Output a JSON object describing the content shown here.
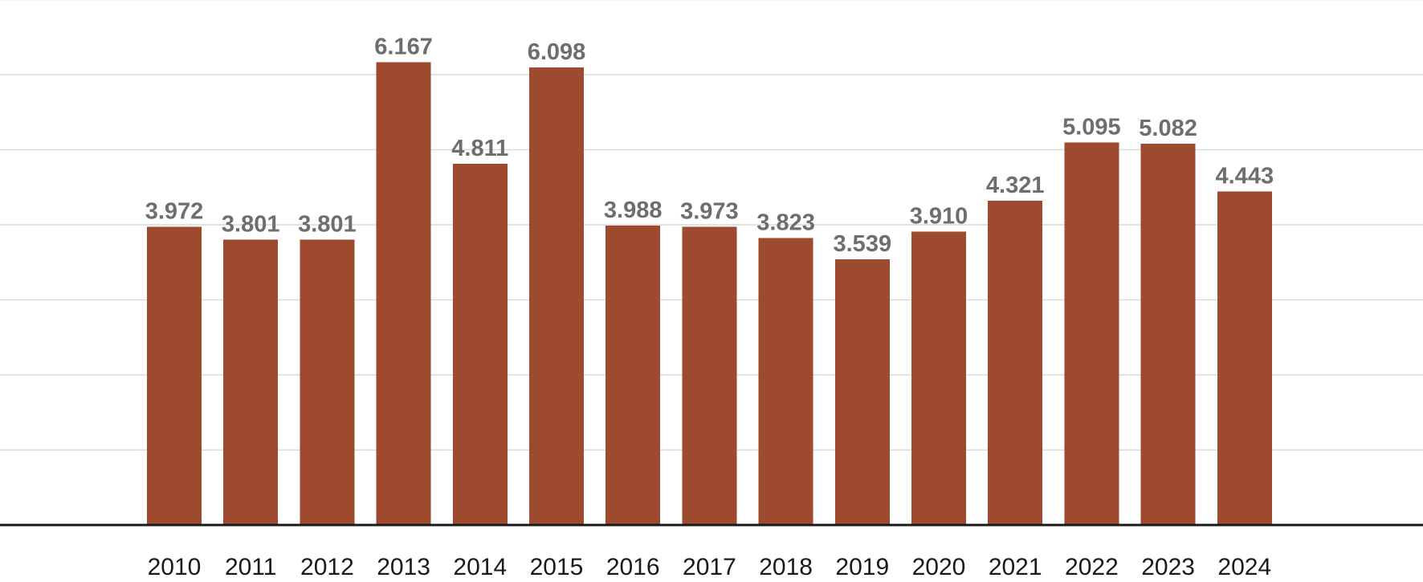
{
  "chart_data": {
    "type": "bar",
    "title": "",
    "xlabel": "",
    "ylabel": "",
    "categories": [
      "2010",
      "2011",
      "2012",
      "2013",
      "2014",
      "2015",
      "2016",
      "2017",
      "2018",
      "2019",
      "2020",
      "2021",
      "2022",
      "2023",
      "2024"
    ],
    "values": [
      3.972,
      3.801,
      3.801,
      6.167,
      4.811,
      6.098,
      3.988,
      3.973,
      3.823,
      3.539,
      3.91,
      4.321,
      5.095,
      5.082,
      4.443
    ],
    "value_labels": [
      "3.972",
      "3.801",
      "3.801",
      "6.167",
      "4.811",
      "6.098",
      "3.988",
      "3.973",
      "3.823",
      "3.539",
      "3.910",
      "4.321",
      "5.095",
      "5.082",
      "4.443"
    ],
    "ylim": [
      0,
      7
    ],
    "grid": true,
    "legend": "none"
  },
  "colors": {
    "bar": "#9d4a2e",
    "value_label": "#6e6e6e",
    "tick_label": "#1a1a1a"
  }
}
